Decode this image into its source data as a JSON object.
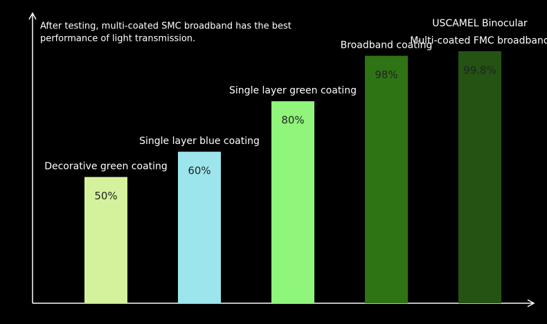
{
  "chart_data": {
    "type": "bar",
    "annotation": [
      "After testing, multi-coated SMC broadband has the best",
      "performance of light transmission."
    ],
    "categories": [
      [
        "Decorative green coating"
      ],
      [
        "Single layer blue coating"
      ],
      [
        "Single layer green coating"
      ],
      [
        "Broadband coating"
      ],
      [
        "USCAMEL Binocular",
        "Multi-coated FMC broadband"
      ]
    ],
    "values": [
      50,
      60,
      80,
      98,
      99.8
    ],
    "value_labels": [
      "50%",
      "60%",
      "80%",
      "98%",
      "99.8%"
    ],
    "colors": [
      "#d4f29c",
      "#9de5ec",
      "#8ff57b",
      "#2f7414",
      "#245313"
    ]
  }
}
